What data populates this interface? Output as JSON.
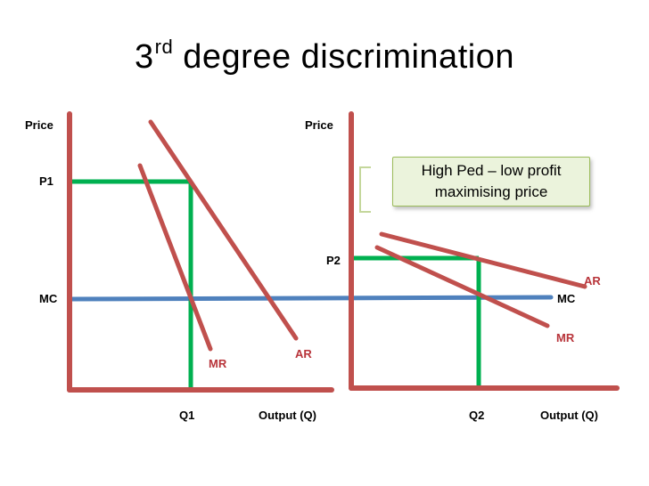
{
  "title": {
    "main": "3",
    "sup": "rd",
    "rest": " degree discrimination"
  },
  "left_graph": {
    "y_axis_label": "Price",
    "price_label": "P1",
    "mc_label": "MC",
    "mr_label": "MR",
    "ar_label": "AR",
    "quantity_label": "Q1",
    "x_axis_label": "Output (Q)"
  },
  "right_graph": {
    "y_axis_label": "Price",
    "price_label": "P2",
    "ar_label": "AR",
    "mc_label": "MC",
    "mr_label": "MR",
    "quantity_label": "Q2",
    "x_axis_label": "Output (Q)"
  },
  "callout": {
    "line1": "High Ped – low profit",
    "line2": "maximising price"
  },
  "colors": {
    "axis": "#c0504d",
    "curve": "#c0504d",
    "mc_line": "#4f81bd",
    "price_quantity": "#00b050",
    "callout_fill": "#ebf3dc",
    "callout_border": "#9bbb59"
  }
}
